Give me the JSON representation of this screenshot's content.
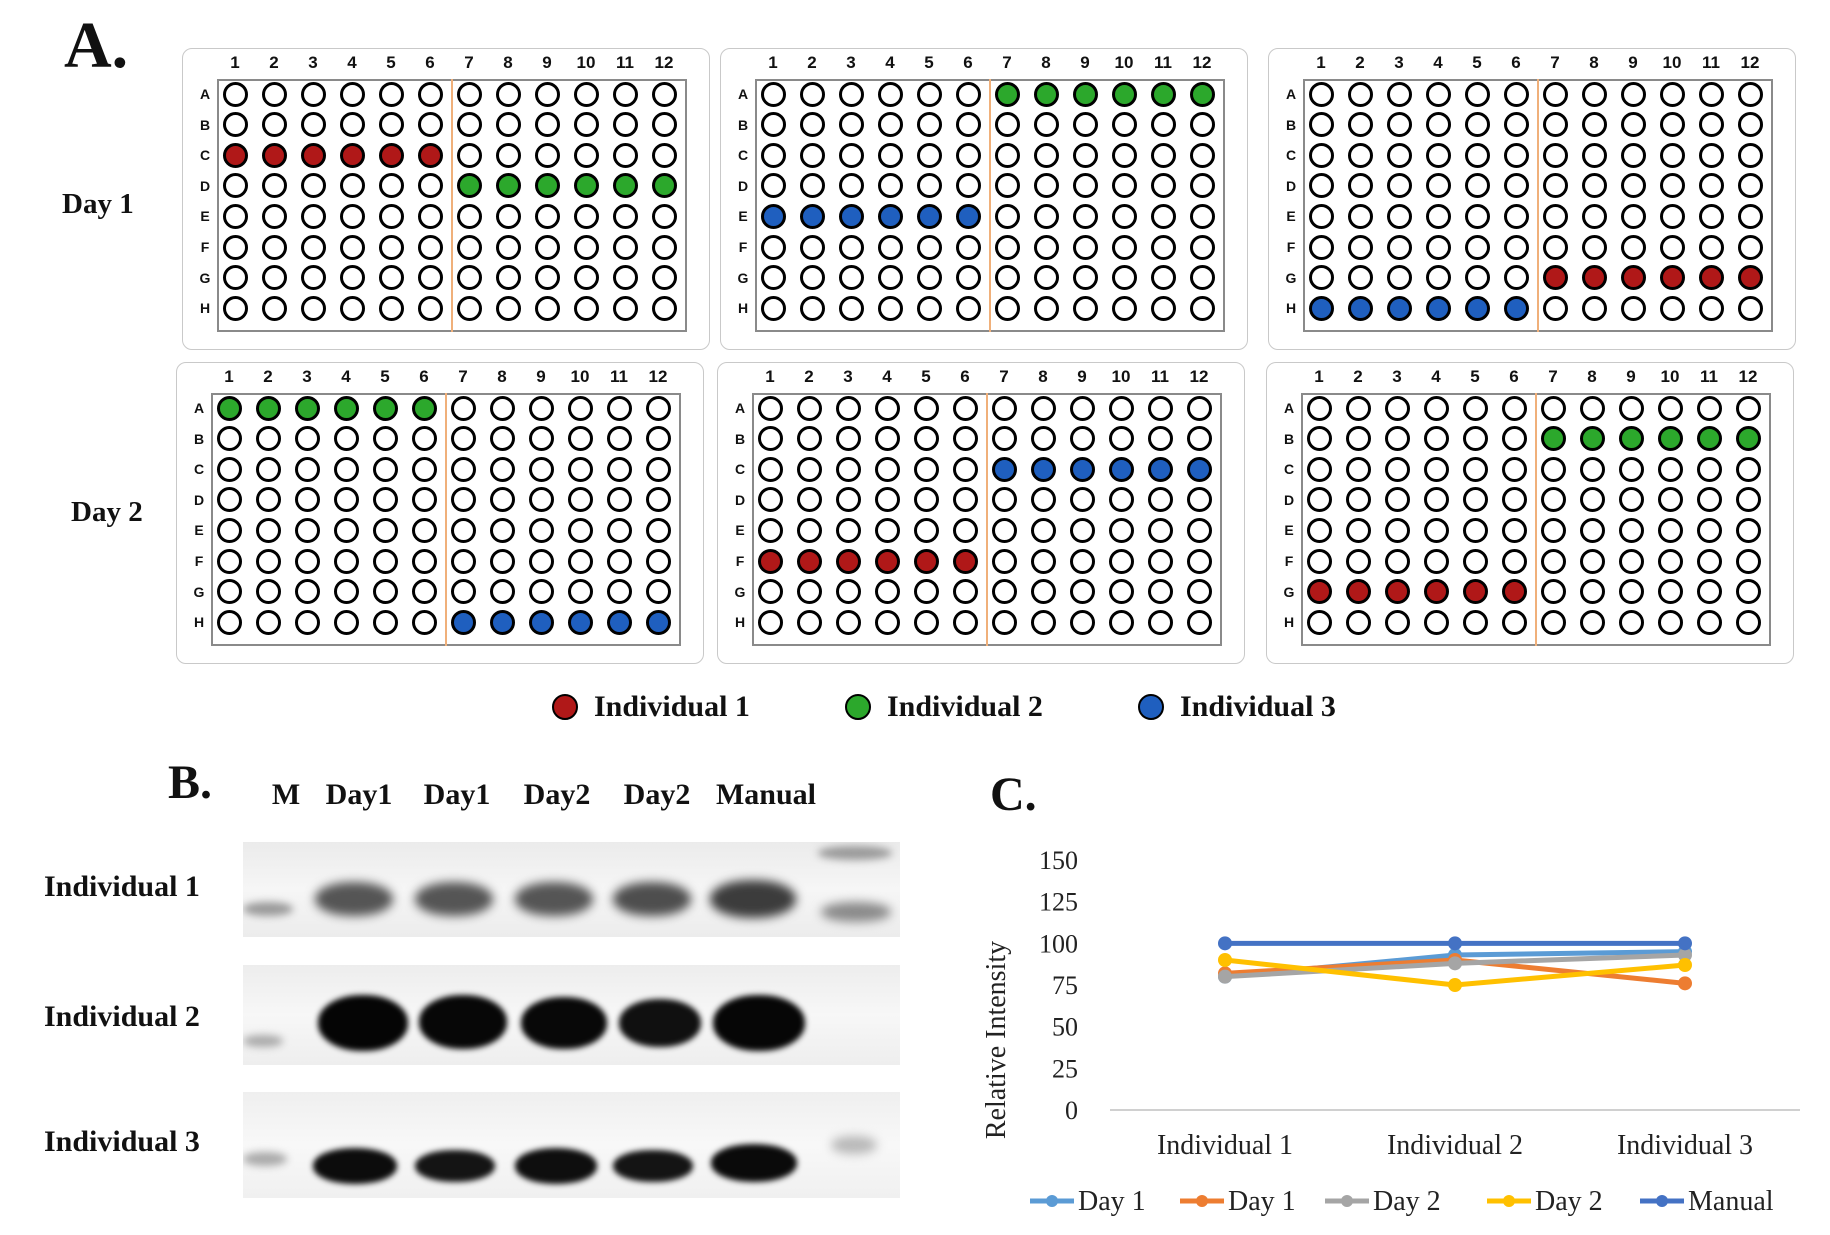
{
  "panel_labels": {
    "a": "A.",
    "b": "B.",
    "c": "C."
  },
  "day_labels": [
    "Day 1",
    "Day 2"
  ],
  "plate_columns": [
    "1",
    "2",
    "3",
    "4",
    "5",
    "6",
    "7",
    "8",
    "9",
    "10",
    "11",
    "12"
  ],
  "plate_rows": [
    "A",
    "B",
    "C",
    "D",
    "E",
    "F",
    "G",
    "H"
  ],
  "colors": {
    "individual_1": "#b01818",
    "individual_2": "#2ca82c",
    "individual_3": "#1f5fbf",
    "empty": "#ffffff",
    "divider": "#f0b07a"
  },
  "plates": [
    {
      "day": "Day 1",
      "position": 1,
      "filled": [
        {
          "row": "C",
          "cols": [
            1,
            2,
            3,
            4,
            5,
            6
          ],
          "individual": "individual_1"
        },
        {
          "row": "D",
          "cols": [
            7,
            8,
            9,
            10,
            11,
            12
          ],
          "individual": "individual_2"
        }
      ]
    },
    {
      "day": "Day 1",
      "position": 2,
      "filled": [
        {
          "row": "A",
          "cols": [
            7,
            8,
            9,
            10,
            11,
            12
          ],
          "individual": "individual_2"
        },
        {
          "row": "E",
          "cols": [
            1,
            2,
            3,
            4,
            5,
            6
          ],
          "individual": "individual_3"
        }
      ]
    },
    {
      "day": "Day 1",
      "position": 3,
      "filled": [
        {
          "row": "G",
          "cols": [
            7,
            8,
            9,
            10,
            11,
            12
          ],
          "individual": "individual_1"
        },
        {
          "row": "H",
          "cols": [
            1,
            2,
            3,
            4,
            5,
            6
          ],
          "individual": "individual_3"
        }
      ]
    },
    {
      "day": "Day 2",
      "position": 1,
      "filled": [
        {
          "row": "A",
          "cols": [
            1,
            2,
            3,
            4,
            5,
            6
          ],
          "individual": "individual_2"
        },
        {
          "row": "H",
          "cols": [
            7,
            8,
            9,
            10,
            11,
            12
          ],
          "individual": "individual_3"
        }
      ]
    },
    {
      "day": "Day 2",
      "position": 2,
      "filled": [
        {
          "row": "C",
          "cols": [
            7,
            8,
            9,
            10,
            11,
            12
          ],
          "individual": "individual_3"
        },
        {
          "row": "F",
          "cols": [
            1,
            2,
            3,
            4,
            5,
            6
          ],
          "individual": "individual_1"
        }
      ]
    },
    {
      "day": "Day 2",
      "position": 3,
      "filled": [
        {
          "row": "B",
          "cols": [
            7,
            8,
            9,
            10,
            11,
            12
          ],
          "individual": "individual_2"
        },
        {
          "row": "G",
          "cols": [
            1,
            2,
            3,
            4,
            5,
            6
          ],
          "individual": "individual_1"
        }
      ]
    }
  ],
  "legend_a": [
    {
      "key": "individual_1",
      "label": "Individual 1"
    },
    {
      "key": "individual_2",
      "label": "Individual 2"
    },
    {
      "key": "individual_3",
      "label": "Individual 3"
    }
  ],
  "blot": {
    "lanes": [
      "M",
      "Day1",
      "Day1",
      "Day2",
      "Day2",
      "Manual"
    ],
    "rows": [
      "Individual 1",
      "Individual 2",
      "Individual 3"
    ]
  },
  "chart_data": {
    "type": "line",
    "title": "",
    "xlabel": "",
    "ylabel": "Relative Intensity",
    "categories": [
      "Individual 1",
      "Individual 2",
      "Individual 3"
    ],
    "ylim": [
      0,
      150
    ],
    "yticks": [
      0,
      25,
      50,
      75,
      100,
      125,
      150
    ],
    "grid": false,
    "legend_position": "bottom",
    "series": [
      {
        "name": "Day 1",
        "color": "#5b9bd5",
        "values": [
          80,
          93,
          95
        ]
      },
      {
        "name": "Day 1",
        "color": "#ed7d31",
        "values": [
          82,
          90,
          76
        ]
      },
      {
        "name": "Day 2",
        "color": "#a5a5a5",
        "values": [
          80,
          88,
          93
        ]
      },
      {
        "name": "Day 2",
        "color": "#ffc000",
        "values": [
          90,
          75,
          87
        ]
      },
      {
        "name": "Manual",
        "color": "#4472c4",
        "values": [
          100,
          100,
          100
        ]
      }
    ]
  }
}
